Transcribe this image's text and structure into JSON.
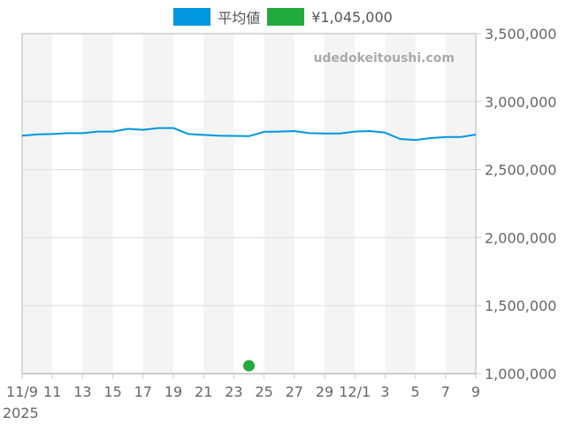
{
  "legend": {
    "items": [
      {
        "label": "平均値",
        "color": "#0096e0"
      },
      {
        "label": "¥1,045,000",
        "color": "#22aa3c"
      }
    ]
  },
  "watermark": "udedokeitoushi.com",
  "colors": {
    "line": "#0096e0",
    "dot": "#22aa3c",
    "band": "#f4f4f4",
    "grid": "#dddddd",
    "axis": "#cccccc",
    "text": "#666666"
  },
  "chart_data": {
    "type": "line",
    "title": "",
    "xlabel": "",
    "ylabel": "",
    "ylim": [
      1000000,
      3500000
    ],
    "y_ticks": [
      "1,000,000",
      "1,500,000",
      "2,000,000",
      "2,500,000",
      "3,000,000",
      "3,500,000"
    ],
    "y_tick_values": [
      1000000,
      1500000,
      2000000,
      2500000,
      3000000,
      3500000
    ],
    "x_tick_labels": [
      "11/9",
      "11",
      "13",
      "15",
      "17",
      "19",
      "21",
      "23",
      "25",
      "27",
      "29",
      "12/1",
      "3",
      "5",
      "7",
      "9"
    ],
    "x_tick_days": [
      0,
      2,
      4,
      6,
      8,
      10,
      12,
      14,
      16,
      18,
      20,
      22,
      24,
      26,
      28,
      30
    ],
    "x_year_label": "2025",
    "grid": true,
    "legend_position": "top",
    "x": [
      "11/9",
      "11/10",
      "11/11",
      "11/12",
      "11/13",
      "11/14",
      "11/15",
      "11/16",
      "11/17",
      "11/18",
      "11/19",
      "11/20",
      "11/21",
      "11/22",
      "11/23",
      "11/24",
      "11/25",
      "11/26",
      "11/27",
      "11/28",
      "11/29",
      "11/30",
      "12/1",
      "12/2",
      "12/3",
      "12/4",
      "12/5",
      "12/6",
      "12/7",
      "12/8",
      "12/9"
    ],
    "series": [
      {
        "name": "平均値",
        "type": "line",
        "values": [
          2750000,
          2760000,
          2762000,
          2768000,
          2768000,
          2780000,
          2780000,
          2800000,
          2793000,
          2806000,
          2806000,
          2762000,
          2755000,
          2750000,
          2748000,
          2746000,
          2778000,
          2780000,
          2784000,
          2768000,
          2766000,
          2766000,
          2780000,
          2784000,
          2772000,
          2725000,
          2718000,
          2732000,
          2740000,
          2740000,
          2758000
        ]
      },
      {
        "name": "¥1,045,000",
        "type": "scatter",
        "points": [
          {
            "x": "11/24",
            "y": 1045000
          }
        ]
      }
    ]
  }
}
